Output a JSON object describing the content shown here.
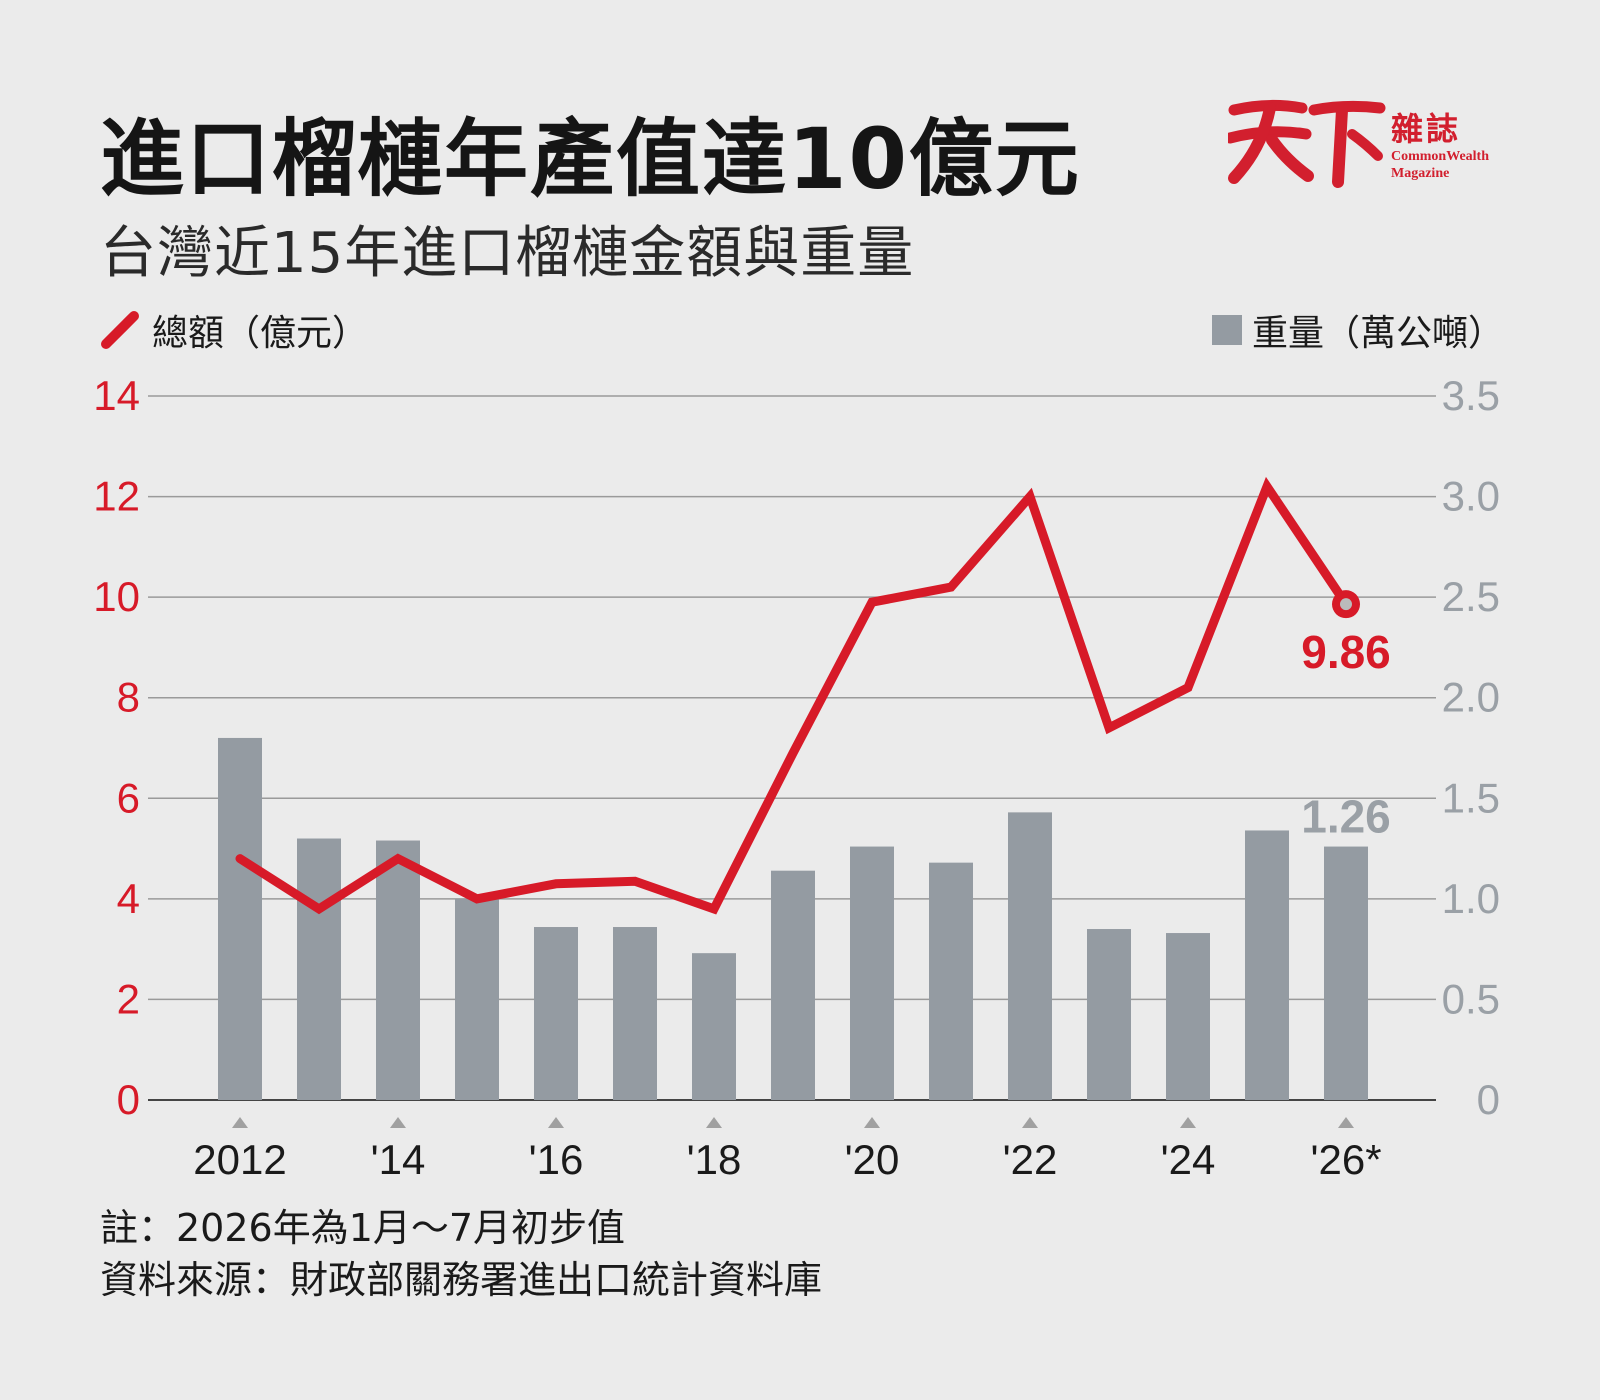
{
  "header": {
    "title": "進口榴槤年產值達10億元",
    "subtitle": "台灣近15年進口榴槤金額與重量"
  },
  "brand": {
    "name_zh": "天下",
    "magazine_zh": "雜誌",
    "name_en_line1": "CommonWealth",
    "name_en_line2": "Magazine",
    "color": "#d21f2e"
  },
  "legend": {
    "line_label": "總額（億元）",
    "bar_label": "重量（萬公噸）"
  },
  "chart_data": {
    "type": "bar+line",
    "years": [
      2012,
      2013,
      2014,
      2015,
      2016,
      2017,
      2018,
      2019,
      2020,
      2021,
      2022,
      2023,
      2024,
      2025,
      2026
    ],
    "tick_labels": [
      "2012",
      "'14",
      "'16",
      "'18",
      "'20",
      "'22",
      "'24",
      "'26*"
    ],
    "tick_years": [
      2012,
      2014,
      2016,
      2018,
      2020,
      2022,
      2024,
      2026
    ],
    "series": [
      {
        "name": "總額（億元）",
        "kind": "line",
        "axis": "left",
        "color": "#d71a28",
        "values": [
          4.8,
          3.8,
          4.8,
          4.0,
          4.3,
          4.35,
          3.8,
          6.9,
          9.9,
          10.2,
          12.0,
          7.4,
          8.2,
          12.2,
          9.86
        ]
      },
      {
        "name": "重量（萬公噸）",
        "kind": "bar",
        "axis": "right",
        "color": "#949ba2",
        "values": [
          1.8,
          1.3,
          1.29,
          1.0,
          0.86,
          0.86,
          0.73,
          1.14,
          1.26,
          1.18,
          1.43,
          0.85,
          0.83,
          1.34,
          1.26
        ]
      }
    ],
    "left_axis": {
      "ticks": [
        "0",
        "2",
        "4",
        "6",
        "8",
        "10",
        "12",
        "14"
      ],
      "ylim": [
        0,
        14
      ],
      "color": "#d71a28"
    },
    "right_axis": {
      "ticks": [
        "0",
        "0.5",
        "1.0",
        "1.5",
        "2.0",
        "2.5",
        "3.0",
        "3.5"
      ],
      "ylim": [
        0,
        3.5
      ],
      "color": "#9aa0a6"
    },
    "annotations": {
      "line_last": "9.86",
      "bar_last": "1.26"
    },
    "grid": true
  },
  "footer": {
    "note": "註：2026年為1月～7月初步值",
    "source": "資料來源：財政部關務署進出口統計資料庫"
  }
}
